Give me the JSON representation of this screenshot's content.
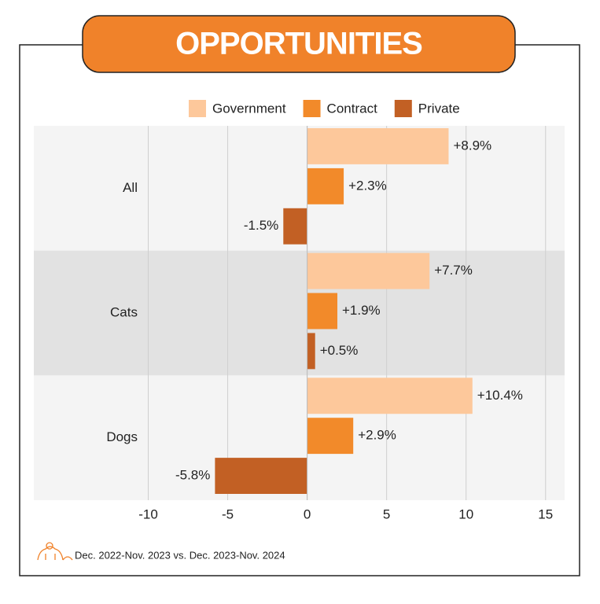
{
  "chart_data": {
    "type": "hbar",
    "title": "OPPORTUNITIES",
    "categories": [
      "All",
      "Cats",
      "Dogs"
    ],
    "series": [
      {
        "name": "Government",
        "color": "#fdc89b",
        "values": [
          8.9,
          7.7,
          10.4
        ],
        "value_labels": [
          "+8.9%",
          "+7.7%",
          "+10.4%"
        ]
      },
      {
        "name": "Contract",
        "color": "#f28a2a",
        "values": [
          2.3,
          1.9,
          2.9
        ],
        "value_labels": [
          "+2.3%",
          "+1.9%",
          "+2.9%"
        ]
      },
      {
        "name": "Private",
        "color": "#c26024",
        "values": [
          -1.5,
          0.5,
          -5.8
        ],
        "value_labels": [
          "-1.5%",
          "+0.5%",
          "-5.8%"
        ]
      }
    ],
    "xlim": [
      -17.2,
      16.2
    ],
    "xticks": [
      -10,
      -5,
      0,
      5,
      10,
      15
    ],
    "grid": true,
    "legend": "top",
    "footnote": "Dec. 2022-Nov. 2023 vs. Dec. 2023-Nov. 2024"
  }
}
